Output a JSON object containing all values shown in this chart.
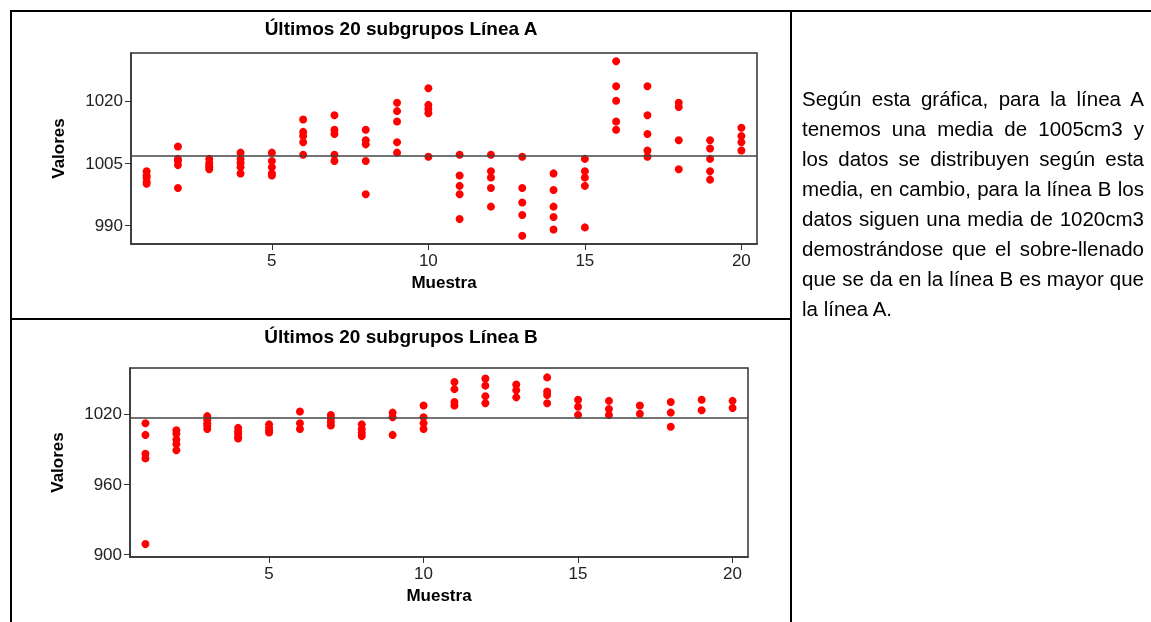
{
  "chart_data": [
    {
      "type": "scatter",
      "title": "Últimos 20 subgrupos Línea A",
      "xlabel": "Muestra",
      "ylabel": "Valores",
      "xlim": [
        0.5,
        20.5
      ],
      "xticks": [
        5,
        10,
        15,
        20
      ],
      "ylim": [
        985.5,
        1031.5
      ],
      "yticks": [
        990,
        1005,
        1020
      ],
      "grid": false,
      "marker": "circle",
      "series": [
        {
          "color": "#ff0000",
          "x": [
            1,
            1,
            1,
            1,
            1,
            2,
            2,
            2,
            2,
            2,
            3,
            3,
            3,
            3,
            3,
            4,
            4,
            4,
            4,
            4,
            5,
            5,
            5,
            5,
            5,
            6,
            6,
            6,
            6,
            6,
            7,
            7,
            7,
            7,
            7,
            8,
            8,
            8,
            8,
            8,
            9,
            9,
            9,
            9,
            9,
            10,
            10,
            10,
            10,
            10,
            11,
            11,
            11,
            11,
            11,
            12,
            12,
            12,
            12,
            12,
            13,
            13,
            13,
            13,
            13,
            14,
            14,
            14,
            14,
            14,
            15,
            15,
            15,
            15,
            15,
            16,
            16,
            16,
            16,
            16,
            17,
            17,
            17,
            17,
            17,
            18,
            18,
            18,
            18,
            19,
            19,
            19,
            19,
            19,
            20,
            20,
            20,
            20
          ],
          "values": [
            1003,
            1002,
            1001.5,
            1000.5,
            1000,
            1009,
            1006,
            1005.5,
            1004.5,
            999,
            1006,
            1005,
            1004.5,
            1004,
            1003.5,
            1007.5,
            1006,
            1005,
            1004,
            1002.5,
            1007.5,
            1005.5,
            1004,
            1002.5,
            1002,
            1015.5,
            1012.5,
            1011.5,
            1010,
            1007,
            1016.5,
            1013,
            1012,
            1007,
            1005.5,
            1013,
            1010.5,
            1009.5,
            1005.5,
            997.5,
            1019.5,
            1017.5,
            1015,
            1010,
            1007.5,
            1023,
            1019,
            1018,
            1017,
            1006.5,
            1007,
            1002,
            999.5,
            997.5,
            991.5,
            1007,
            1003,
            1001.5,
            999,
            994.5,
            1006.5,
            999,
            995.5,
            992.5,
            987.5,
            1002.5,
            998.5,
            994.5,
            992,
            989,
            1006,
            1003,
            1001.5,
            999.5,
            989.5,
            1029.5,
            1023.5,
            1020,
            1015,
            1013,
            1023.5,
            1016.5,
            1012,
            1008,
            1006.5,
            1019.5,
            1018.5,
            1010.5,
            1003.5,
            1010.5,
            1008.5,
            1006,
            1003,
            1001,
            1013.5,
            1011.5,
            1010,
            1008
          ]
        }
      ],
      "ref_lines": [
        {
          "axis": "y",
          "value": 1006.8,
          "color": "#444444"
        }
      ]
    },
    {
      "type": "scatter",
      "title": "Últimos 20 subgrupos Línea B",
      "xlabel": "Muestra",
      "ylabel": "Valores",
      "xlim": [
        0.5,
        20.5
      ],
      "xticks": [
        5,
        10,
        15,
        20
      ],
      "ylim": [
        898,
        1059
      ],
      "yticks": [
        900,
        960,
        1020
      ],
      "grid": false,
      "marker": "circle",
      "series": [
        {
          "color": "#ff0000",
          "x": [
            1,
            1,
            1,
            1,
            1,
            2,
            2,
            2,
            2,
            2,
            3,
            3,
            3,
            3,
            3,
            4,
            4,
            4,
            4,
            4,
            5,
            5,
            5,
            5,
            6,
            6,
            6,
            7,
            7,
            7,
            7,
            8,
            8,
            8,
            8,
            9,
            9,
            9,
            10,
            10,
            10,
            10,
            11,
            11,
            11,
            11,
            12,
            12,
            12,
            12,
            13,
            13,
            13,
            14,
            14,
            14,
            14,
            15,
            15,
            15,
            16,
            16,
            16,
            17,
            17,
            18,
            18,
            18,
            19,
            19,
            20,
            20
          ],
          "values": [
            1012,
            1002,
            986,
            982,
            909,
            1006,
            1003,
            998,
            994,
            989,
            1018,
            1015,
            1012,
            1010,
            1007,
            1008,
            1005,
            1003,
            1000,
            999,
            1011,
            1008,
            1006,
            1004,
            1022,
            1012,
            1007,
            1019,
            1016,
            1013,
            1010,
            1011,
            1007,
            1004,
            1001,
            1021,
            1017,
            1002,
            1027,
            1017,
            1012,
            1007,
            1047,
            1041,
            1030,
            1027,
            1050,
            1044,
            1035,
            1029,
            1045,
            1040,
            1034,
            1051,
            1039,
            1036,
            1029,
            1032,
            1026,
            1019,
            1031,
            1024,
            1019,
            1027,
            1020,
            1030,
            1021,
            1009,
            1032,
            1023,
            1031,
            1025
          ]
        }
      ],
      "ref_lines": [
        {
          "axis": "y",
          "value": 1016.6,
          "color": "#444444"
        }
      ]
    },
    {
      "type": "other",
      "annotations": [
        "Según esta gráfica, para la línea A tenemos una media de 1005cm3 y los datos se distribuyen según esta media, en cambio, para la línea B los datos siguen una media de 1020cm3 demostrándose que el sobre-llenado que se da en la línea B es mayor que la línea A."
      ]
    }
  ]
}
